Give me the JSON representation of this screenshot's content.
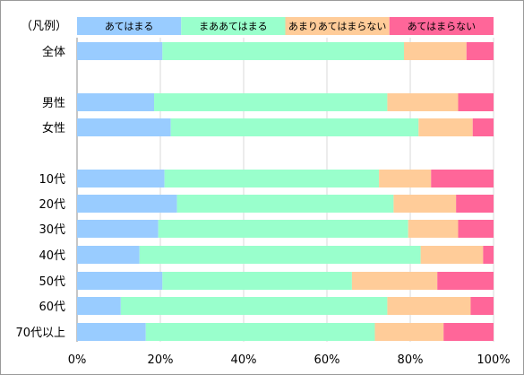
{
  "chart_data": {
    "type": "bar",
    "orientation": "horizontal",
    "stacked": "percent",
    "legend_title": "（凡例）",
    "legend_position": "top",
    "xlim": [
      0,
      100
    ],
    "x_ticks": [
      "0%",
      "20%",
      "40%",
      "60%",
      "80%",
      "100%"
    ],
    "grid": true,
    "categories": [
      "全体",
      "男性",
      "女性",
      "10代",
      "20代",
      "30代",
      "40代",
      "50代",
      "60代",
      "70代以上"
    ],
    "series": [
      {
        "name": "あてはまる",
        "color": "#99CCFF",
        "values": [
          20.5,
          18.5,
          22.5,
          21.0,
          24.0,
          19.5,
          15.0,
          20.5,
          10.5,
          16.5
        ]
      },
      {
        "name": "まああてはまる",
        "color": "#99FFCC",
        "values": [
          58.0,
          56.0,
          59.5,
          51.5,
          52.0,
          60.0,
          67.5,
          45.5,
          64.0,
          55.0
        ]
      },
      {
        "name": "あまりあてはまらない",
        "color": "#FFCC99",
        "values": [
          15.0,
          17.0,
          13.0,
          12.5,
          15.0,
          12.0,
          15.0,
          20.5,
          20.0,
          16.5
        ]
      },
      {
        "name": "あてはまらない",
        "color": "#FF6699",
        "values": [
          6.5,
          8.5,
          5.0,
          15.0,
          9.0,
          8.5,
          2.5,
          13.5,
          5.5,
          12.0
        ]
      }
    ]
  }
}
